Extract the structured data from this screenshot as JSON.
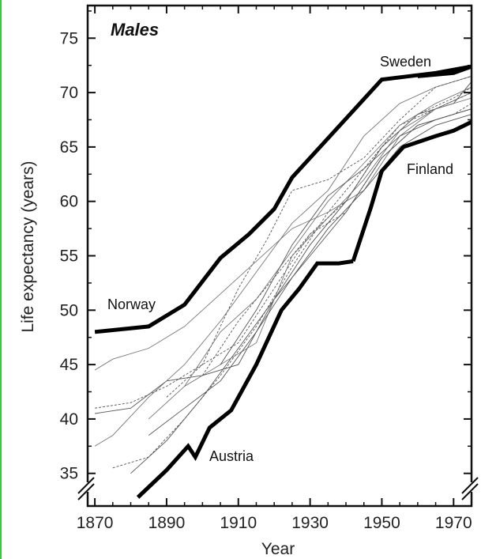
{
  "chart_data": {
    "type": "line",
    "title": "Males",
    "xlabel": "Year",
    "ylabel": "Life expectancy (years)",
    "xlim": [
      1868,
      1975
    ],
    "ylim": [
      32,
      78
    ],
    "x_ticks": [
      1870,
      1890,
      1910,
      1930,
      1950,
      1970
    ],
    "y_ticks": [
      35,
      40,
      45,
      50,
      55,
      60,
      65,
      70,
      75
    ],
    "axis_breaks": true,
    "highlighted_series": [
      {
        "name": "Norway",
        "x": [
          1870,
          1885,
          1895,
          1905,
          1913,
          1920,
          1925,
          1950,
          1965,
          1975
        ],
        "y": [
          48,
          48.5,
          50.5,
          54.8,
          57,
          59.3,
          62.2,
          71.2,
          71.8,
          72.4
        ]
      },
      {
        "name": "Sweden",
        "x": [
          1960,
          1970,
          1975
        ],
        "y": [
          71.5,
          71.8,
          72.4
        ]
      },
      {
        "name": "Finland",
        "x": [
          1942,
          1947,
          1950,
          1956,
          1965,
          1970,
          1975
        ],
        "y": [
          54.5,
          59.5,
          62.8,
          65,
          66,
          66.5,
          67.3
        ]
      },
      {
        "name": "Austria",
        "x": [
          1882,
          1890,
          1896,
          1898,
          1902,
          1908,
          1915,
          1922,
          1927,
          1932,
          1938,
          1942
        ],
        "y": [
          32.8,
          35.3,
          37.5,
          36.5,
          39.2,
          40.8,
          45,
          50,
          52,
          54.3,
          54.3,
          54.5
        ]
      }
    ],
    "background_series": [
      {
        "x": [
          1870,
          1875,
          1885,
          1895,
          1905,
          1915,
          1925,
          1935,
          1945,
          1955,
          1965,
          1975
        ],
        "y": [
          44.5,
          45.5,
          46.5,
          48.5,
          51.5,
          54.5,
          57.5,
          59,
          61,
          66,
          68.5,
          70
        ]
      },
      {
        "x": [
          1870,
          1880,
          1890,
          1900,
          1910,
          1920,
          1930,
          1940,
          1950,
          1960,
          1970,
          1975
        ],
        "y": [
          41,
          41.5,
          43,
          45,
          47,
          52,
          57,
          59,
          64,
          67,
          68,
          69
        ]
      },
      {
        "x": [
          1870,
          1880,
          1890,
          1900,
          1910,
          1920,
          1930,
          1940,
          1950,
          1960,
          1970,
          1975
        ],
        "y": [
          40.5,
          41,
          43.5,
          44,
          45,
          51,
          56,
          60,
          65,
          68,
          69,
          71
        ]
      },
      {
        "x": [
          1870,
          1875,
          1885,
          1895,
          1905,
          1915,
          1925,
          1935,
          1945,
          1955,
          1965,
          1975
        ],
        "y": [
          37.5,
          38.5,
          42,
          45,
          49,
          53.5,
          58,
          61,
          66,
          69,
          70.5,
          71.5
        ]
      },
      {
        "x": [
          1875,
          1885,
          1895,
          1905,
          1915,
          1925,
          1935,
          1945,
          1955,
          1965,
          1975
        ],
        "y": [
          35.5,
          36.5,
          40,
          44,
          48.5,
          54,
          59,
          63,
          67,
          68.5,
          70
        ]
      },
      {
        "x": [
          1880,
          1890,
          1900,
          1910,
          1920,
          1930,
          1940,
          1950,
          1960,
          1970,
          1975
        ],
        "y": [
          35,
          38,
          42,
          46.5,
          51,
          55,
          59,
          64,
          67,
          68,
          68.5
        ]
      },
      {
        "x": [
          1885,
          1895,
          1905,
          1915,
          1925,
          1935,
          1945,
          1955,
          1965,
          1975
        ],
        "y": [
          40,
          43,
          45,
          47,
          55,
          58.5,
          62,
          66.5,
          68.5,
          69.5
        ]
      },
      {
        "x": [
          1890,
          1900,
          1910,
          1918,
          1925,
          1935,
          1945,
          1955,
          1965,
          1975
        ],
        "y": [
          42,
          45,
          52,
          56.5,
          61,
          62,
          64,
          67.5,
          70.5,
          71.5
        ]
      },
      {
        "x": [
          1885,
          1895,
          1905,
          1915,
          1925,
          1935,
          1945,
          1955,
          1965,
          1975
        ],
        "y": [
          38.5,
          41,
          43.5,
          48,
          53,
          57.5,
          61,
          65,
          67,
          68
        ]
      },
      {
        "x": [
          1895,
          1905,
          1915,
          1925,
          1935,
          1945,
          1955,
          1965,
          1975
        ],
        "y": [
          43,
          48,
          51,
          55.5,
          60,
          63.5,
          67,
          69,
          70.5
        ]
      },
      {
        "x": [
          1900,
          1910,
          1920,
          1930,
          1940,
          1950,
          1960,
          1970,
          1975
        ],
        "y": [
          44,
          49,
          53,
          57,
          60,
          65,
          68,
          69.5,
          70.5
        ]
      },
      {
        "x": [
          1905,
          1915,
          1925,
          1935,
          1945,
          1955,
          1965,
          1975
        ],
        "y": [
          45,
          50,
          56,
          60.5,
          63,
          66,
          67.5,
          68.5
        ]
      }
    ]
  }
}
